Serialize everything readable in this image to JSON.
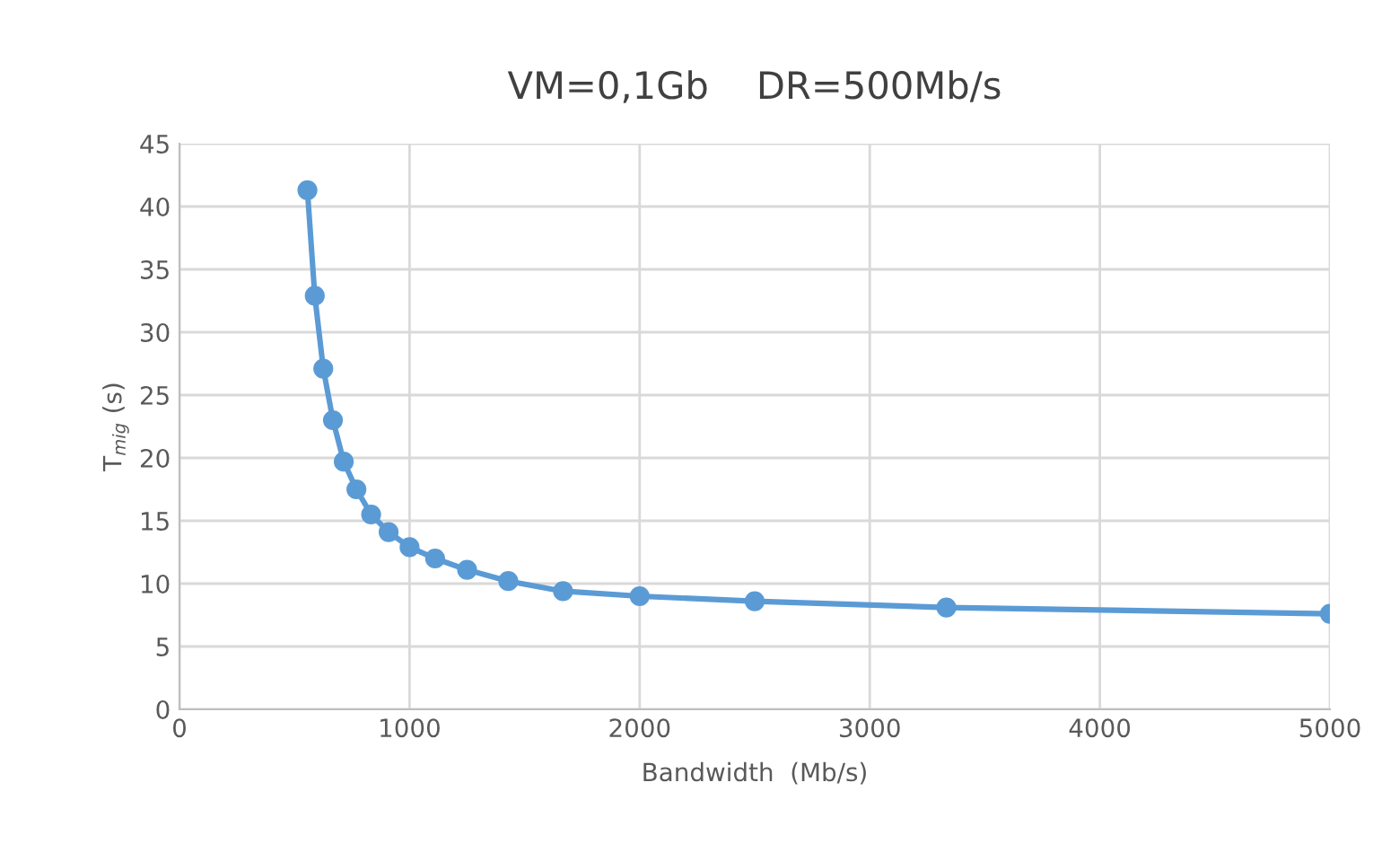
{
  "chart_data": {
    "type": "line",
    "title": "VM=0,1Gb    DR=500Mb/s",
    "xlabel": "Bandwidth  (Mb/s)",
    "ylabel": "T$_{mig}$ (s)",
    "series": [
      {
        "color": "#5b9bd5",
        "x": [
          556,
          588,
          625,
          667,
          714,
          769,
          833,
          909,
          1000,
          1111,
          1250,
          1429,
          1667,
          2000,
          2500,
          3333,
          5000
        ],
        "values": [
          41.3,
          32.9,
          27.1,
          23.0,
          19.7,
          17.5,
          15.5,
          14.1,
          12.9,
          12.0,
          11.1,
          10.2,
          9.4,
          9.0,
          8.6,
          8.1,
          7.6
        ]
      }
    ],
    "xlim": [
      0,
      5000
    ],
    "xticks": [
      0,
      1000,
      2000,
      3000,
      4000,
      5000
    ],
    "ylim": [
      0,
      45
    ],
    "yticks": [
      0,
      5,
      10,
      15,
      20,
      25,
      30,
      35,
      40,
      45
    ],
    "grid": true,
    "marker": "circle",
    "line_style": "solid"
  }
}
